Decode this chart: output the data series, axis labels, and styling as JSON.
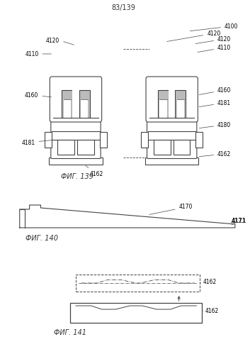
{
  "page_label": "83/139",
  "fig139_label": "ФИГ. 139",
  "fig140_label": "ФИГ. 140",
  "fig141_label": "ФИГ. 141",
  "bg_color": "#ffffff",
  "lc": "#444444",
  "gray": "#bbbbbb",
  "darkgray": "#888888"
}
